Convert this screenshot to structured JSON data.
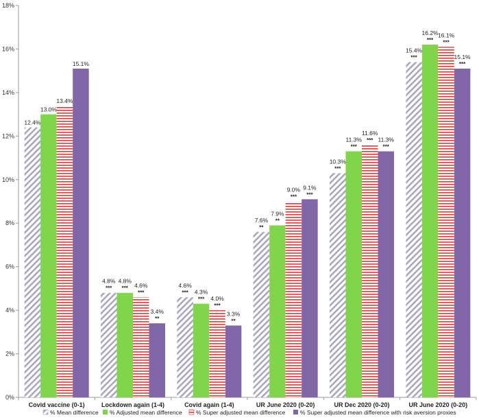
{
  "chart_data": {
    "type": "bar",
    "categories": [
      "Covid vaccine (0-1)",
      "Lockdown again (1-4)",
      "Covid again (1-4)",
      "UR June 2020 (0-20)",
      "UR Dec 2020 (0-20)",
      "UR June 2020 (0-20)"
    ],
    "series": [
      {
        "name": "% Mean difference",
        "color": "#a9a6c4",
        "pattern": "diagonal-hatch",
        "values": [
          12.4,
          4.8,
          4.6,
          7.6,
          10.3,
          15.4
        ],
        "labels": [
          "12.4%",
          "4.8%",
          "4.6%",
          "7.6%",
          "10.3%",
          "15.4%"
        ],
        "significance": [
          "",
          "***",
          "***",
          "**",
          "***",
          "***"
        ]
      },
      {
        "name": "% Adjusted mean difference",
        "color": "#7fd64a",
        "pattern": "solid",
        "values": [
          13.0,
          4.8,
          4.3,
          7.9,
          11.3,
          16.2
        ],
        "labels": [
          "13.0%",
          "4.8%",
          "4.3%",
          "7.9%",
          "11.3%",
          "16.2%"
        ],
        "significance": [
          "",
          "***",
          "***",
          "**",
          "***",
          "***"
        ]
      },
      {
        "name": "% Super adjusted mean difference",
        "color": "#e8332f",
        "pattern": "horizontal-stripes",
        "values": [
          13.4,
          4.6,
          4.0,
          9.0,
          11.6,
          16.1
        ],
        "labels": [
          "13.4%",
          "4.6%",
          "4.0%",
          "9.0%",
          "11.6%",
          "16.1%"
        ],
        "significance": [
          "",
          "***",
          "***",
          "***",
          "***",
          "***"
        ]
      },
      {
        "name": "% Super adjusted mean difference with risk aversion proxies",
        "color": "#8166a8",
        "pattern": "solid",
        "values": [
          15.1,
          3.4,
          3.3,
          9.1,
          11.3,
          15.1
        ],
        "labels": [
          "15.1%",
          "3.4%",
          "3.3%",
          "9.1%",
          "11.3%",
          "15.1%"
        ],
        "significance": [
          "",
          "**",
          "**",
          "***",
          "***",
          "***"
        ]
      }
    ],
    "ylim": [
      0,
      18
    ],
    "yticks": [
      "0%",
      "2%",
      "4%",
      "6%",
      "8%",
      "10%",
      "12%",
      "14%",
      "16%",
      "18%"
    ],
    "ytick_values": [
      0,
      2,
      4,
      6,
      8,
      10,
      12,
      14,
      16,
      18
    ],
    "legend_position": "bottom",
    "grid": false
  }
}
